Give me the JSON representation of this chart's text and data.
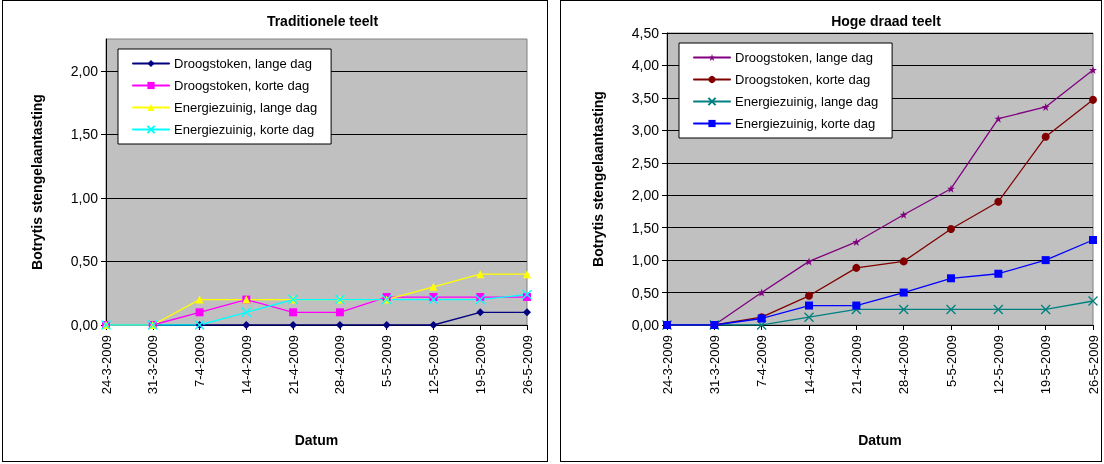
{
  "chart_data": [
    {
      "type": "line",
      "title": "Traditionele teelt",
      "xlabel": "Datum",
      "ylabel": "Botrytis stengelaantasting",
      "categories": [
        "24-3-2009",
        "31-3-2009",
        "7-4-2009",
        "14-4-2009",
        "21-4-2009",
        "28-4-2009",
        "5-5-2009",
        "12-5-2009",
        "19-5-2009",
        "26-5-2009"
      ],
      "ylim": [
        0,
        2.25
      ],
      "yticks": [
        {
          "value": 0,
          "label": "0,00"
        },
        {
          "value": 0.5,
          "label": "0,50"
        },
        {
          "value": 1,
          "label": "1,00"
        },
        {
          "value": 1.5,
          "label": "1,50"
        },
        {
          "value": 2,
          "label": "2,00"
        }
      ],
      "grid": "y",
      "legend": "top left",
      "series": [
        {
          "name": "Droogstoken, lange dag",
          "color": "#000080",
          "marker": "diamond",
          "values": [
            0,
            0,
            0,
            0,
            0,
            0,
            0,
            0,
            0.1,
            0.1
          ]
        },
        {
          "name": "Droogstoken, korte dag",
          "color": "#ff00ff",
          "marker": "square",
          "values": [
            0,
            0,
            0.1,
            0.2,
            0.1,
            0.1,
            0.22,
            0.22,
            0.22,
            0.22
          ]
        },
        {
          "name": "Energiezuinig, lange dag",
          "color": "#ffff00",
          "marker": "triangle",
          "values": [
            0,
            0,
            0.2,
            0.2,
            0.2,
            0.2,
            0.2,
            0.3,
            0.4,
            0.4
          ]
        },
        {
          "name": "Energiezuinig, korte dag",
          "color": "#00ffff",
          "marker": "cross",
          "values": [
            0,
            0,
            0,
            0.1,
            0.2,
            0.2,
            0.2,
            0.2,
            0.2,
            0.24
          ]
        }
      ]
    },
    {
      "type": "line",
      "title": "Hoge draad teelt",
      "xlabel": "Datum",
      "ylabel": "Botrytis stengelaantasting",
      "categories": [
        "24-3-2009",
        "31-3-2009",
        "7-4-2009",
        "14-4-2009",
        "21-4-2009",
        "28-4-2009",
        "5-5-2009",
        "12-5-2009",
        "19-5-2009",
        "26-5-2009"
      ],
      "ylim": [
        0,
        4.5
      ],
      "yticks": [
        {
          "value": 0,
          "label": "0,00"
        },
        {
          "value": 0.5,
          "label": "0,50"
        },
        {
          "value": 1,
          "label": "1,00"
        },
        {
          "value": 1.5,
          "label": "1,50"
        },
        {
          "value": 2,
          "label": "2,00"
        },
        {
          "value": 2.5,
          "label": "2,50"
        },
        {
          "value": 3,
          "label": "3,00"
        },
        {
          "value": 3.5,
          "label": "3,50"
        },
        {
          "value": 4,
          "label": "4,00"
        },
        {
          "value": 4.5,
          "label": "4,50"
        }
      ],
      "grid": "y",
      "legend": "top left",
      "series": [
        {
          "name": "Droogstoken, lange dag",
          "color": "#800080",
          "marker": "star",
          "values": [
            0,
            0,
            0.5,
            0.98,
            1.28,
            1.7,
            2.1,
            3.18,
            3.36,
            3.93
          ]
        },
        {
          "name": "Droogstoken, korte dag",
          "color": "#800000",
          "marker": "circle",
          "values": [
            0,
            0,
            0.12,
            0.45,
            0.88,
            0.98,
            1.48,
            1.9,
            2.9,
            3.47
          ]
        },
        {
          "name": "Energiezuinig, lange dag",
          "color": "#008080",
          "marker": "cross",
          "values": [
            0,
            0,
            0,
            0.12,
            0.24,
            0.24,
            0.24,
            0.24,
            0.24,
            0.37
          ]
        },
        {
          "name": "Energiezuinig, korte dag",
          "color": "#0000ff",
          "marker": "square",
          "values": [
            0,
            0,
            0.1,
            0.3,
            0.3,
            0.5,
            0.72,
            0.79,
            1.0,
            1.31
          ]
        }
      ]
    }
  ]
}
